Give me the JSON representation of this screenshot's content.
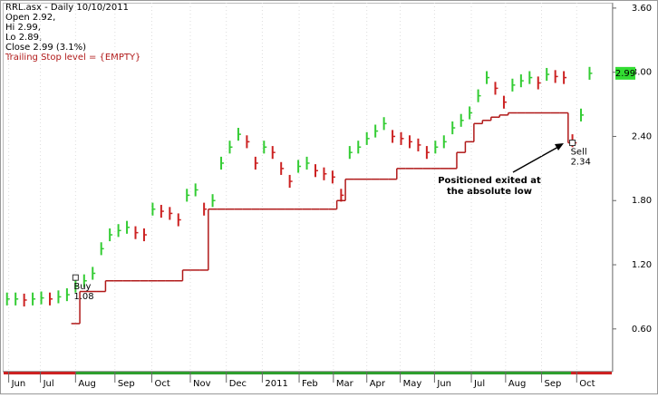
{
  "chart_data": {
    "type": "ohlc",
    "header": [
      "RRL.asx - Daily 10/10/2011",
      "Open 2.92,",
      "Hi 2.99,",
      "Lo 2.89,",
      "Close 2.99 (3.1%)"
    ],
    "stop_header": "Trailing Stop level = {EMPTY}",
    "x": [
      0,
      1,
      2,
      3,
      4,
      5,
      6,
      7,
      8,
      9,
      10,
      11,
      12,
      13,
      14,
      15,
      16,
      17,
      18,
      19,
      20,
      21,
      22,
      23,
      24,
      25,
      26,
      27,
      28,
      29,
      30,
      31,
      32,
      33,
      34,
      35,
      36,
      37,
      38,
      39,
      40,
      41,
      42,
      43,
      44,
      45,
      46,
      47,
      48,
      49,
      50,
      51,
      52,
      53,
      54,
      55,
      56,
      57,
      58,
      59,
      60,
      61,
      62,
      63,
      64,
      65,
      66,
      67,
      68
    ],
    "xlim": [
      -0.5,
      70.7
    ],
    "xticks": [
      {
        "value": 0.2,
        "label": "Jun"
      },
      {
        "value": 3.9,
        "label": "Jul"
      },
      {
        "value": 8.0,
        "label": "Aug"
      },
      {
        "value": 12.6,
        "label": "Sep"
      },
      {
        "value": 16.9,
        "label": "Oct"
      },
      {
        "value": 21.4,
        "label": "Nov"
      },
      {
        "value": 25.6,
        "label": "Dec"
      },
      {
        "value": 29.8,
        "label": "2011"
      },
      {
        "value": 34.1,
        "label": "Feb"
      },
      {
        "value": 38.1,
        "label": "Mar"
      },
      {
        "value": 42.0,
        "label": "Apr"
      },
      {
        "value": 45.9,
        "label": "May"
      },
      {
        "value": 49.9,
        "label": "Jun"
      },
      {
        "value": 54.2,
        "label": "Jul"
      },
      {
        "value": 58.2,
        "label": "Aug"
      },
      {
        "value": 62.4,
        "label": "Sep"
      },
      {
        "value": 66.5,
        "label": "Oct"
      }
    ],
    "ylim": [
      0.2,
      3.65
    ],
    "yticks": [
      {
        "value": 0.6,
        "label": "0.60"
      },
      {
        "value": 1.2,
        "label": "1.20"
      },
      {
        "value": 1.8,
        "label": "1.80"
      },
      {
        "value": 2.4,
        "label": "2.40"
      },
      {
        "value": 3.0,
        "label": "3.00"
      },
      {
        "value": 3.6,
        "label": "3.60"
      }
    ],
    "up_color": "#33cc33",
    "down_color": "#cc2222",
    "high": [
      0.94,
      0.94,
      0.93,
      0.94,
      0.95,
      0.94,
      0.96,
      0.98,
      1.06,
      1.11,
      1.18,
      1.41,
      1.54,
      1.58,
      1.61,
      1.56,
      1.54,
      1.78,
      1.76,
      1.74,
      1.68,
      1.91,
      1.96,
      1.78,
      1.86,
      2.21,
      2.36,
      2.48,
      2.41,
      2.21,
      2.36,
      2.31,
      2.16,
      2.04,
      2.18,
      2.21,
      2.14,
      2.11,
      2.08,
      1.91,
      2.31,
      2.36,
      2.44,
      2.51,
      2.58,
      2.46,
      2.44,
      2.41,
      2.38,
      2.31,
      2.36,
      2.41,
      2.54,
      2.61,
      2.68,
      2.84,
      3.01,
      2.91,
      2.78,
      2.94,
      2.98,
      3.01,
      2.96,
      3.04,
      3.02,
      3.01,
      2.42,
      2.66,
      3.05
    ],
    "low": [
      0.82,
      0.82,
      0.81,
      0.82,
      0.83,
      0.82,
      0.84,
      0.86,
      0.94,
      0.99,
      1.06,
      1.29,
      1.42,
      1.46,
      1.49,
      1.44,
      1.42,
      1.66,
      1.64,
      1.62,
      1.56,
      1.79,
      1.84,
      1.66,
      1.74,
      2.09,
      2.24,
      2.36,
      2.29,
      2.09,
      2.24,
      2.19,
      2.04,
      1.92,
      2.06,
      2.09,
      2.02,
      1.99,
      1.96,
      1.79,
      2.19,
      2.24,
      2.32,
      2.39,
      2.46,
      2.34,
      2.32,
      2.29,
      2.26,
      2.19,
      2.24,
      2.29,
      2.42,
      2.49,
      2.56,
      2.72,
      2.89,
      2.79,
      2.66,
      2.82,
      2.86,
      2.89,
      2.84,
      2.92,
      2.9,
      2.89,
      2.3,
      2.54,
      2.93
    ],
    "close": [
      0.88,
      0.88,
      0.87,
      0.88,
      0.89,
      0.88,
      0.9,
      0.92,
      1.0,
      1.05,
      1.12,
      1.35,
      1.48,
      1.52,
      1.55,
      1.5,
      1.48,
      1.72,
      1.7,
      1.68,
      1.62,
      1.85,
      1.9,
      1.72,
      1.8,
      2.15,
      2.3,
      2.42,
      2.35,
      2.15,
      2.3,
      2.25,
      2.1,
      1.98,
      2.12,
      2.15,
      2.08,
      2.05,
      2.02,
      1.85,
      2.25,
      2.3,
      2.38,
      2.45,
      2.52,
      2.4,
      2.38,
      2.35,
      2.32,
      2.25,
      2.3,
      2.35,
      2.48,
      2.55,
      2.62,
      2.78,
      2.95,
      2.85,
      2.72,
      2.88,
      2.92,
      2.95,
      2.9,
      2.98,
      2.96,
      2.95,
      2.36,
      2.6,
      2.99
    ],
    "stop": {
      "name": "Trailing Stop",
      "color": "#b01818",
      "values": [
        null,
        null,
        null,
        null,
        null,
        null,
        null,
        null,
        0.65,
        0.95,
        0.95,
        0.95,
        1.05,
        1.05,
        1.05,
        1.05,
        1.05,
        1.05,
        1.05,
        1.05,
        1.05,
        1.15,
        1.15,
        1.15,
        1.72,
        1.72,
        1.72,
        1.72,
        1.72,
        1.72,
        1.72,
        1.72,
        1.72,
        1.72,
        1.72,
        1.72,
        1.72,
        1.72,
        1.72,
        1.8,
        2.0,
        2.0,
        2.0,
        2.0,
        2.0,
        2.0,
        2.1,
        2.1,
        2.1,
        2.1,
        2.1,
        2.1,
        2.1,
        2.25,
        2.35,
        2.52,
        2.55,
        2.58,
        2.6,
        2.62,
        2.62,
        2.62,
        2.62,
        2.62,
        2.62,
        2.62,
        2.34,
        null,
        null
      ]
    },
    "signals": [
      {
        "name": "Buy",
        "x": 8,
        "value": 1.08
      },
      {
        "name": "Sell",
        "x": 66,
        "value": 2.34
      }
    ],
    "last_price": 2.99,
    "annotation": [
      "Positioned exited at",
      "the absolute low"
    ]
  }
}
